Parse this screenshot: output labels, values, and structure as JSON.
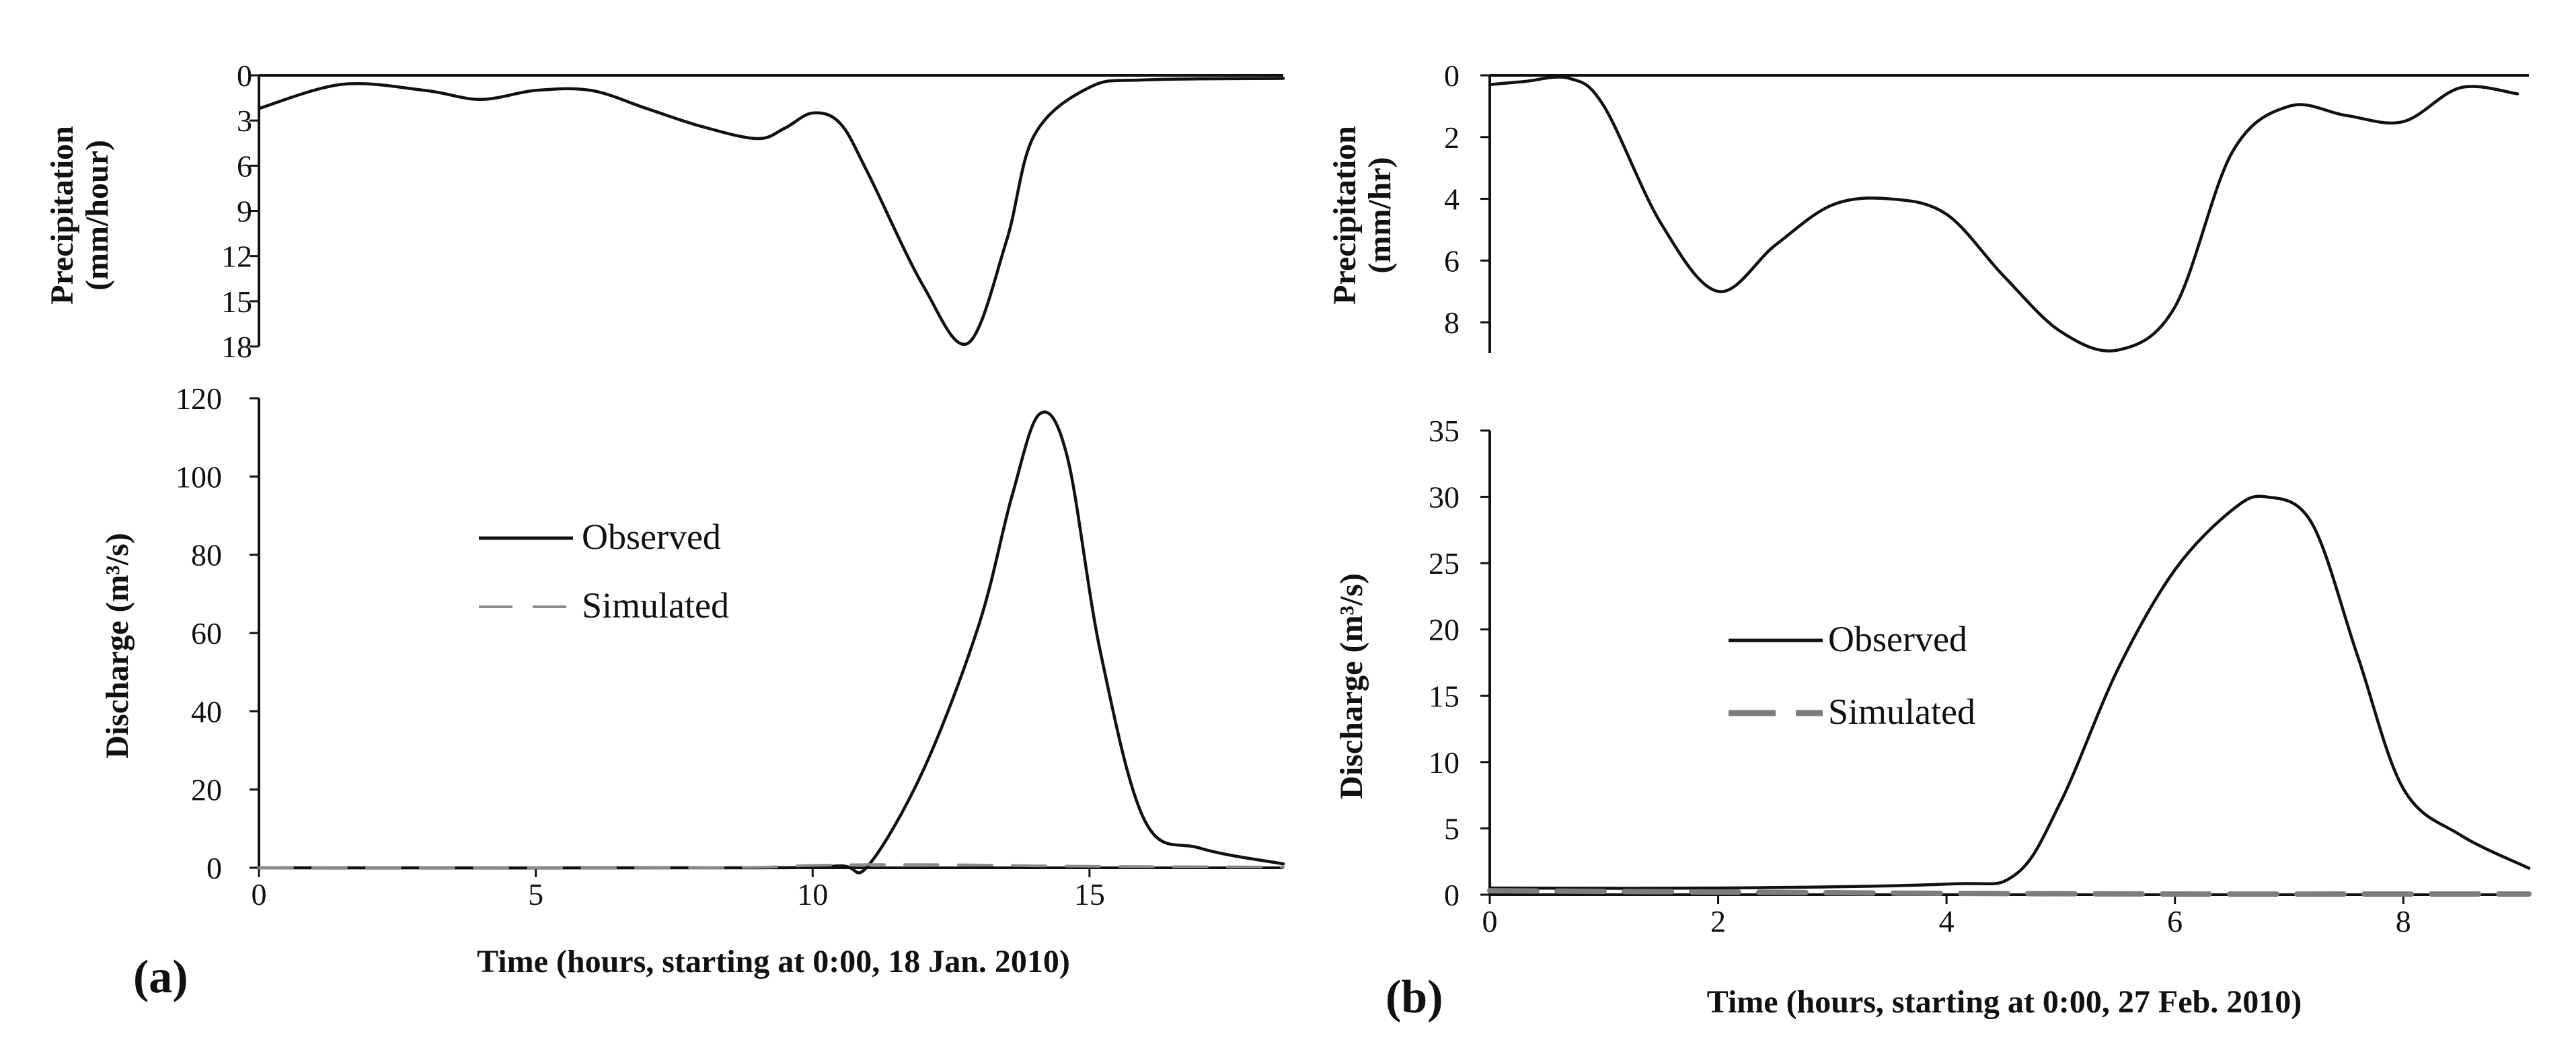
{
  "figure": {
    "panel_a_label": "(a)",
    "panel_b_label": "(b)"
  },
  "colors": {
    "observed": "#111111",
    "simulated_a": "#8a8a8a",
    "simulated_b": "#7d7d7d",
    "axis": "#111111"
  },
  "chart_data": [
    {
      "id": "a-precip",
      "type": "line",
      "title": "",
      "ylabel_line1": "Precipitation",
      "ylabel_line2": "(mm/hour)",
      "xlabel": "",
      "xlim": [
        0,
        18.5
      ],
      "ylim": [
        0,
        18
      ],
      "y_inverted": true,
      "yticks": [
        0,
        3,
        6,
        9,
        12,
        15,
        18
      ],
      "xticks": [],
      "series": [
        {
          "name": "Precipitation",
          "x": [
            0,
            1.5,
            3,
            4,
            5,
            6,
            7,
            8,
            9,
            9.5,
            10,
            10.5,
            11,
            12,
            12.8,
            13.5,
            14,
            15,
            16,
            18.5
          ],
          "values": [
            2.2,
            0.6,
            1.0,
            1.6,
            1.0,
            1.0,
            2.2,
            3.4,
            4.2,
            3.5,
            2.5,
            3.2,
            6.5,
            14.0,
            17.8,
            11.0,
            4.0,
            0.8,
            0.3,
            0.2
          ]
        }
      ]
    },
    {
      "id": "a-discharge",
      "type": "line",
      "title": "",
      "ylabel": "Discharge (m³/s)",
      "xlabel": "Time (hours, starting at 0:00, 18 Jan. 2010)",
      "xlim": [
        0,
        18.5
      ],
      "ylim": [
        0,
        120
      ],
      "yticks": [
        0,
        20,
        40,
        60,
        80,
        100,
        120
      ],
      "xticks": [
        0,
        5,
        10,
        15
      ],
      "legend": [
        "Observed",
        "Simulated"
      ],
      "series": [
        {
          "name": "Observed",
          "x": [
            0,
            9,
            10.5,
            11,
            12,
            13,
            13.6,
            14.1,
            14.6,
            15.2,
            16,
            17,
            18.5
          ],
          "values": [
            0,
            0,
            0.5,
            0.5,
            25,
            62,
            95,
            116,
            105,
            55,
            12,
            5,
            1
          ]
        },
        {
          "name": "Simulated",
          "x": [
            0,
            8,
            10,
            11,
            12,
            13,
            14,
            15,
            16,
            18.5
          ],
          "values": [
            0,
            0,
            0.6,
            0.8,
            0.8,
            0.7,
            0.5,
            0.4,
            0.3,
            0.2
          ]
        }
      ]
    },
    {
      "id": "b-precip",
      "type": "line",
      "title": "",
      "ylabel_line1": "Precipitation",
      "ylabel_line2": "(mm/hr)",
      "xlabel": "",
      "xlim": [
        0,
        9.1
      ],
      "ylim": [
        0,
        9
      ],
      "y_inverted": true,
      "yticks": [
        0,
        2,
        4,
        6,
        8
      ],
      "xticks": [],
      "series": [
        {
          "name": "Precipitation",
          "x": [
            0,
            0.3,
            0.7,
            1.0,
            1.5,
            2.0,
            2.5,
            3.0,
            3.5,
            4.0,
            4.5,
            5.0,
            5.5,
            6.0,
            6.5,
            7.0,
            7.5,
            8.0,
            8.5,
            9.0
          ],
          "values": [
            0.3,
            0.2,
            0.1,
            1.0,
            4.8,
            7.0,
            5.5,
            4.2,
            4.0,
            4.5,
            6.5,
            8.3,
            8.9,
            7.5,
            2.5,
            1.0,
            1.3,
            1.5,
            0.4,
            0.6
          ]
        }
      ]
    },
    {
      "id": "b-discharge",
      "type": "line",
      "title": "",
      "ylabel": "Discharge (m³/s)",
      "xlabel": "Time (hours, starting at 0:00, 27 Feb. 2010)",
      "xlim": [
        0,
        9.1
      ],
      "ylim": [
        0,
        35
      ],
      "yticks": [
        0,
        5,
        10,
        15,
        20,
        25,
        30,
        35
      ],
      "xticks": [
        0,
        2,
        4,
        6,
        8
      ],
      "legend": [
        "Observed",
        "Simulated"
      ],
      "series": [
        {
          "name": "Observed",
          "x": [
            0,
            2,
            4,
            4.6,
            5.0,
            5.5,
            6.0,
            6.5,
            6.8,
            7.2,
            7.6,
            8.0,
            8.5,
            9.1
          ],
          "values": [
            0.5,
            0.5,
            0.8,
            1.5,
            7.0,
            17.0,
            24.5,
            29.0,
            30.0,
            28.0,
            18.0,
            8.0,
            4.5,
            2.0
          ]
        },
        {
          "name": "Simulated",
          "x": [
            0,
            2,
            4,
            6,
            8,
            9.1
          ],
          "values": [
            0.3,
            0.2,
            0.1,
            0.05,
            0.05,
            0.05
          ]
        }
      ]
    }
  ]
}
